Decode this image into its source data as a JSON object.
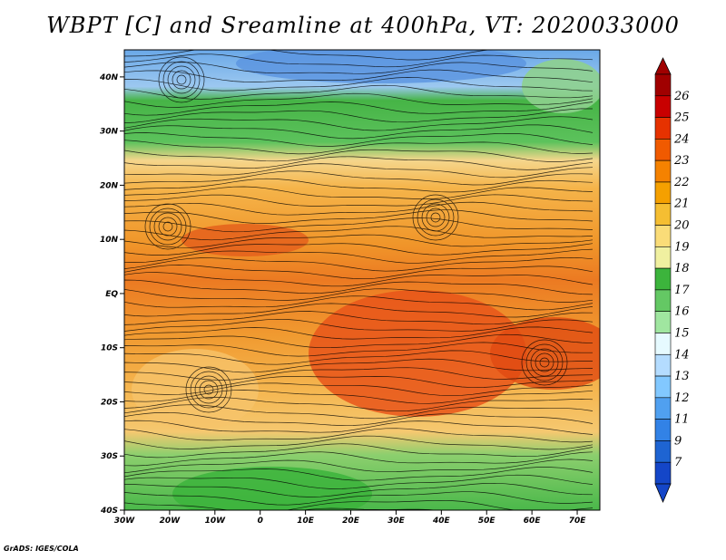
{
  "title": "WBPT [C] and Sreamline at 400hPa, VT: 2020033000",
  "credit": "GrADS: IGES/COLA",
  "map": {
    "lon_ticks": [
      "30W",
      "20W",
      "10W",
      "0",
      "10E",
      "20E",
      "30E",
      "40E",
      "50E",
      "60E",
      "70E"
    ],
    "lat_ticks": [
      "40N",
      "30N",
      "20N",
      "10N",
      "EQ",
      "10S",
      "20S",
      "30S",
      "40S"
    ],
    "lon_range": [
      -30,
      75
    ],
    "lat_range": [
      -40,
      45
    ]
  },
  "colorbar": {
    "labels": [
      "26",
      "25",
      "24",
      "23",
      "22",
      "21",
      "20",
      "19",
      "18",
      "17",
      "16",
      "15",
      "14",
      "13",
      "12",
      "11",
      "9",
      "7"
    ],
    "colors": [
      "#a00000",
      "#c80000",
      "#e63200",
      "#f05a00",
      "#f58200",
      "#f5a000",
      "#f5be32",
      "#fadc78",
      "#f0f0a0",
      "#3cb43c",
      "#64c864",
      "#a0e6a0",
      "#e6faff",
      "#b4dcff",
      "#82c8ff",
      "#50a0f0",
      "#3282e6",
      "#1e64d2",
      "#1446c8"
    ]
  }
}
